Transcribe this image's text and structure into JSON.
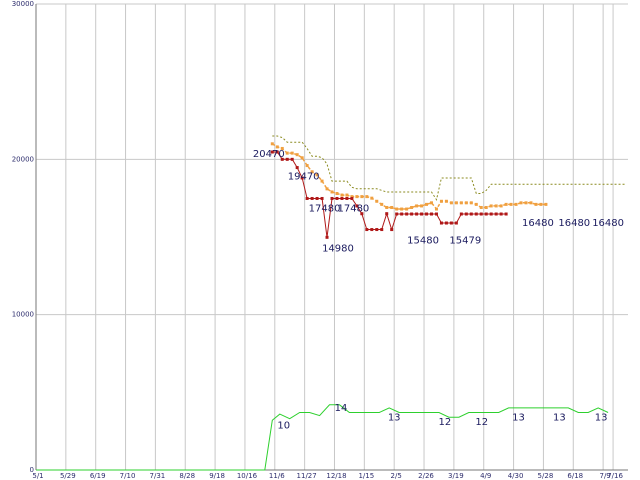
{
  "chart_data": {
    "type": "line",
    "xlim": [
      0,
      119
    ],
    "ylim": [
      0,
      30000
    ],
    "y_ticks": [
      0,
      10000,
      20000,
      30000
    ],
    "y_tick_labels": [
      "0",
      "10000",
      "20000",
      "30000"
    ],
    "x_ticks": [
      {
        "x": 0,
        "label": "5/1"
      },
      {
        "x": 6,
        "label": "5/29"
      },
      {
        "x": 12,
        "label": "6/19"
      },
      {
        "x": 18,
        "label": "7/10"
      },
      {
        "x": 24,
        "label": "7/31"
      },
      {
        "x": 30,
        "label": "8/28"
      },
      {
        "x": 36,
        "label": "9/18"
      },
      {
        "x": 42,
        "label": "10/16"
      },
      {
        "x": 48,
        "label": "11/6"
      },
      {
        "x": 54,
        "label": "11/27"
      },
      {
        "x": 60,
        "label": "12/18"
      },
      {
        "x": 66,
        "label": "1/15"
      },
      {
        "x": 72,
        "label": "2/5"
      },
      {
        "x": 78,
        "label": "2/26"
      },
      {
        "x": 84,
        "label": "3/19"
      },
      {
        "x": 90,
        "label": "4/9"
      },
      {
        "x": 96,
        "label": "4/30"
      },
      {
        "x": 102,
        "label": "5/28"
      },
      {
        "x": 108,
        "label": "6/18"
      },
      {
        "x": 114,
        "label": "7/9"
      },
      {
        "x": 116,
        "label": "7/16"
      }
    ],
    "grid": true,
    "series": [
      {
        "color": "#8b8b20",
        "style": "dotted",
        "points": [
          [
            47.5,
            21500
          ],
          [
            48.5,
            21500
          ],
          [
            49.5,
            21400
          ],
          [
            50.5,
            21100
          ],
          [
            51.5,
            21100
          ],
          [
            52.5,
            21100
          ],
          [
            53.5,
            21100
          ],
          [
            54.5,
            20700
          ],
          [
            55.5,
            20200
          ],
          [
            56.5,
            20200
          ],
          [
            57.5,
            20100
          ],
          [
            58.5,
            19700
          ],
          [
            59.5,
            18600
          ],
          [
            60.5,
            18600
          ],
          [
            61.5,
            18600
          ],
          [
            62.5,
            18600
          ],
          [
            63.5,
            18200
          ],
          [
            64.5,
            18100
          ],
          [
            65.5,
            18100
          ],
          [
            66.5,
            18100
          ],
          [
            67.5,
            18100
          ],
          [
            68.5,
            18100
          ],
          [
            69.5,
            18000
          ],
          [
            70.5,
            17900
          ],
          [
            71.5,
            17900
          ],
          [
            72.5,
            17900
          ],
          [
            73.5,
            17900
          ],
          [
            74.5,
            17900
          ],
          [
            75.5,
            17900
          ],
          [
            76.5,
            17900
          ],
          [
            77.5,
            17900
          ],
          [
            78.5,
            17900
          ],
          [
            79.5,
            17900
          ],
          [
            80.5,
            17400
          ],
          [
            81.5,
            18800
          ],
          [
            82.5,
            18800
          ],
          [
            83.5,
            18800
          ],
          [
            84.5,
            18800
          ],
          [
            85.5,
            18800
          ],
          [
            86.5,
            18800
          ],
          [
            87.5,
            18800
          ],
          [
            88.5,
            17800
          ],
          [
            89.5,
            17800
          ],
          [
            90.5,
            18000
          ],
          [
            91.5,
            18400
          ],
          [
            92.5,
            18400
          ],
          [
            93.5,
            18400
          ],
          [
            94.5,
            18400
          ],
          [
            95.5,
            18400
          ],
          [
            96.5,
            18400
          ],
          [
            97.5,
            18400
          ],
          [
            98.5,
            18400
          ],
          [
            99.5,
            18400
          ],
          [
            100.5,
            18400
          ],
          [
            101.5,
            18400
          ],
          [
            102.5,
            18400
          ],
          [
            103.5,
            18400
          ],
          [
            104.5,
            18400
          ],
          [
            105.5,
            18400
          ],
          [
            106.5,
            18400
          ],
          [
            107.5,
            18400
          ],
          [
            108.5,
            18400
          ],
          [
            109.5,
            18400
          ],
          [
            110.5,
            18400
          ],
          [
            111.5,
            18400
          ],
          [
            112.5,
            18400
          ],
          [
            113.5,
            18400
          ],
          [
            114.5,
            18400
          ],
          [
            115.5,
            18400
          ],
          [
            116.5,
            18400
          ],
          [
            117.5,
            18400
          ],
          [
            118.5,
            18400
          ]
        ]
      },
      {
        "color": "#f0a040",
        "style": "dashed-markers",
        "points": [
          [
            47.5,
            21000
          ],
          [
            48.5,
            20800
          ],
          [
            49.5,
            20700
          ],
          [
            50.5,
            20400
          ],
          [
            51.5,
            20400
          ],
          [
            52.5,
            20300
          ],
          [
            53.5,
            20100
          ],
          [
            54.5,
            19600
          ],
          [
            55.5,
            19200
          ],
          [
            56.5,
            19000
          ],
          [
            57.5,
            18600
          ],
          [
            58.5,
            18100
          ],
          [
            59.5,
            17900
          ],
          [
            60.5,
            17800
          ],
          [
            61.5,
            17700
          ],
          [
            62.5,
            17700
          ],
          [
            63.5,
            17600
          ],
          [
            64.5,
            17600
          ],
          [
            65.5,
            17600
          ],
          [
            66.5,
            17600
          ],
          [
            67.5,
            17500
          ],
          [
            68.5,
            17300
          ],
          [
            69.5,
            17100
          ],
          [
            70.5,
            16900
          ],
          [
            71.5,
            16900
          ],
          [
            72.5,
            16800
          ],
          [
            73.5,
            16800
          ],
          [
            74.5,
            16800
          ],
          [
            75.5,
            16900
          ],
          [
            76.5,
            17000
          ],
          [
            77.5,
            17000
          ],
          [
            78.5,
            17100
          ],
          [
            79.5,
            17200
          ],
          [
            80.5,
            16800
          ],
          [
            81.5,
            17300
          ],
          [
            82.5,
            17300
          ],
          [
            83.5,
            17200
          ],
          [
            84.5,
            17200
          ],
          [
            85.5,
            17200
          ],
          [
            86.5,
            17200
          ],
          [
            87.5,
            17200
          ],
          [
            88.5,
            17100
          ],
          [
            89.5,
            16900
          ],
          [
            90.5,
            16900
          ],
          [
            91.5,
            17000
          ],
          [
            92.5,
            17000
          ],
          [
            93.5,
            17000
          ],
          [
            94.5,
            17100
          ],
          [
            95.5,
            17100
          ],
          [
            96.5,
            17100
          ],
          [
            97.5,
            17200
          ],
          [
            98.5,
            17200
          ],
          [
            99.5,
            17200
          ],
          [
            100.5,
            17100
          ],
          [
            101.5,
            17100
          ],
          [
            102.5,
            17100
          ]
        ]
      },
      {
        "color": "#b01818",
        "style": "solid-markers",
        "points": [
          [
            47.5,
            20470
          ],
          [
            48.5,
            20470
          ],
          [
            49.5,
            20000
          ],
          [
            50.5,
            20000
          ],
          [
            51.5,
            20000
          ],
          [
            52.5,
            19470
          ],
          [
            53.5,
            18800
          ],
          [
            54.5,
            17480
          ],
          [
            55.5,
            17480
          ],
          [
            56.5,
            17480
          ],
          [
            57.5,
            17480
          ],
          [
            58.5,
            14980
          ],
          [
            59.5,
            17480
          ],
          [
            60.5,
            17480
          ],
          [
            61.5,
            17480
          ],
          [
            62.5,
            17480
          ],
          [
            63.5,
            17480
          ],
          [
            64.5,
            17000
          ],
          [
            65.5,
            16500
          ],
          [
            66.5,
            15480
          ],
          [
            67.5,
            15480
          ],
          [
            68.5,
            15480
          ],
          [
            69.5,
            15480
          ],
          [
            70.5,
            16500
          ],
          [
            71.5,
            15479
          ],
          [
            72.5,
            16480
          ],
          [
            73.5,
            16480
          ],
          [
            74.5,
            16480
          ],
          [
            75.5,
            16480
          ],
          [
            76.5,
            16480
          ],
          [
            77.5,
            16480
          ],
          [
            78.5,
            16480
          ],
          [
            79.5,
            16480
          ],
          [
            80.5,
            16480
          ],
          [
            81.5,
            15900
          ],
          [
            82.5,
            15900
          ],
          [
            83.5,
            15900
          ],
          [
            84.5,
            15900
          ],
          [
            85.5,
            16480
          ],
          [
            86.5,
            16480
          ],
          [
            87.5,
            16480
          ],
          [
            88.5,
            16480
          ],
          [
            89.5,
            16480
          ],
          [
            90.5,
            16480
          ],
          [
            91.5,
            16480
          ],
          [
            92.5,
            16480
          ],
          [
            93.5,
            16480
          ],
          [
            94.5,
            16480
          ]
        ]
      },
      {
        "color": "#2ed02e",
        "style": "solid",
        "points": [
          [
            0,
            0
          ],
          [
            1,
            0
          ],
          [
            2,
            0
          ],
          [
            3,
            0
          ],
          [
            4,
            0
          ],
          [
            5,
            0
          ],
          [
            6,
            0
          ],
          [
            7,
            0
          ],
          [
            8,
            0
          ],
          [
            9,
            0
          ],
          [
            10,
            0
          ],
          [
            11,
            0
          ],
          [
            12,
            0
          ],
          [
            13,
            0
          ],
          [
            14,
            0
          ],
          [
            15,
            0
          ],
          [
            16,
            0
          ],
          [
            17,
            0
          ],
          [
            18,
            0
          ],
          [
            19,
            0
          ],
          [
            20,
            0
          ],
          [
            21,
            0
          ],
          [
            22,
            0
          ],
          [
            23,
            0
          ],
          [
            24,
            0
          ],
          [
            25,
            0
          ],
          [
            26,
            0
          ],
          [
            27,
            0
          ],
          [
            28,
            0
          ],
          [
            29,
            0
          ],
          [
            30,
            0
          ],
          [
            31,
            0
          ],
          [
            32,
            0
          ],
          [
            33,
            0
          ],
          [
            34,
            0
          ],
          [
            35,
            0
          ],
          [
            36,
            0
          ],
          [
            37,
            0
          ],
          [
            38,
            0
          ],
          [
            39,
            0
          ],
          [
            40,
            0
          ],
          [
            41,
            0
          ],
          [
            42,
            0
          ],
          [
            43,
            0
          ],
          [
            44,
            0
          ],
          [
            45,
            0
          ],
          [
            46,
            0
          ],
          [
            47.5,
            3200
          ],
          [
            49,
            3600
          ],
          [
            51,
            3300
          ],
          [
            53,
            3700
          ],
          [
            55,
            3700
          ],
          [
            57,
            3500
          ],
          [
            59,
            4200
          ],
          [
            61,
            4200
          ],
          [
            63,
            3700
          ],
          [
            65,
            3700
          ],
          [
            67,
            3700
          ],
          [
            69,
            3700
          ],
          [
            71,
            4000
          ],
          [
            73,
            3700
          ],
          [
            75,
            3700
          ],
          [
            77,
            3700
          ],
          [
            79,
            3700
          ],
          [
            81,
            3700
          ],
          [
            83,
            3400
          ],
          [
            85,
            3400
          ],
          [
            87,
            3700
          ],
          [
            89,
            3700
          ],
          [
            91,
            3700
          ],
          [
            93,
            3700
          ],
          [
            95,
            4000
          ],
          [
            97,
            4000
          ],
          [
            99,
            4000
          ],
          [
            101,
            4000
          ],
          [
            103,
            4000
          ],
          [
            105,
            4000
          ],
          [
            107,
            4000
          ],
          [
            109,
            3700
          ],
          [
            111,
            3700
          ],
          [
            113,
            4000
          ],
          [
            115,
            3700
          ]
        ]
      }
    ],
    "data_labels": [
      {
        "x": 46.8,
        "y": 20470,
        "text": "20470",
        "dy": 5
      },
      {
        "x": 53.8,
        "y": 19470,
        "text": "19470",
        "dy": 12
      },
      {
        "x": 58.0,
        "y": 17480,
        "text": "17480",
        "dy": 13
      },
      {
        "x": 63.8,
        "y": 17480,
        "text": "17480",
        "dy": 13
      },
      {
        "x": 60.7,
        "y": 14980,
        "text": "14980",
        "dy": 14
      },
      {
        "x": 77.8,
        "y": 15480,
        "text": "15480",
        "dy": 14
      },
      {
        "x": 86.3,
        "y": 15479,
        "text": "15479",
        "dy": 14
      },
      {
        "x": 100.9,
        "y": 16480,
        "text": "16480",
        "dy": 12
      },
      {
        "x": 108.2,
        "y": 16480,
        "text": "16480",
        "dy": 12
      },
      {
        "x": 115.0,
        "y": 16480,
        "text": "16480",
        "dy": 12
      },
      {
        "x": 49.8,
        "y": 3200,
        "text": "10",
        "dy": 8
      },
      {
        "x": 61.3,
        "y": 4200,
        "text": "14",
        "dy": 6
      },
      {
        "x": 72.0,
        "y": 3700,
        "text": "13",
        "dy": 8
      },
      {
        "x": 82.2,
        "y": 3400,
        "text": "12",
        "dy": 8
      },
      {
        "x": 89.6,
        "y": 3400,
        "text": "12",
        "dy": 8
      },
      {
        "x": 97.0,
        "y": 3700,
        "text": "13",
        "dy": 8
      },
      {
        "x": 105.2,
        "y": 3700,
        "text": "13",
        "dy": 8
      },
      {
        "x": 113.6,
        "y": 3700,
        "text": "13",
        "dy": 8
      }
    ]
  }
}
